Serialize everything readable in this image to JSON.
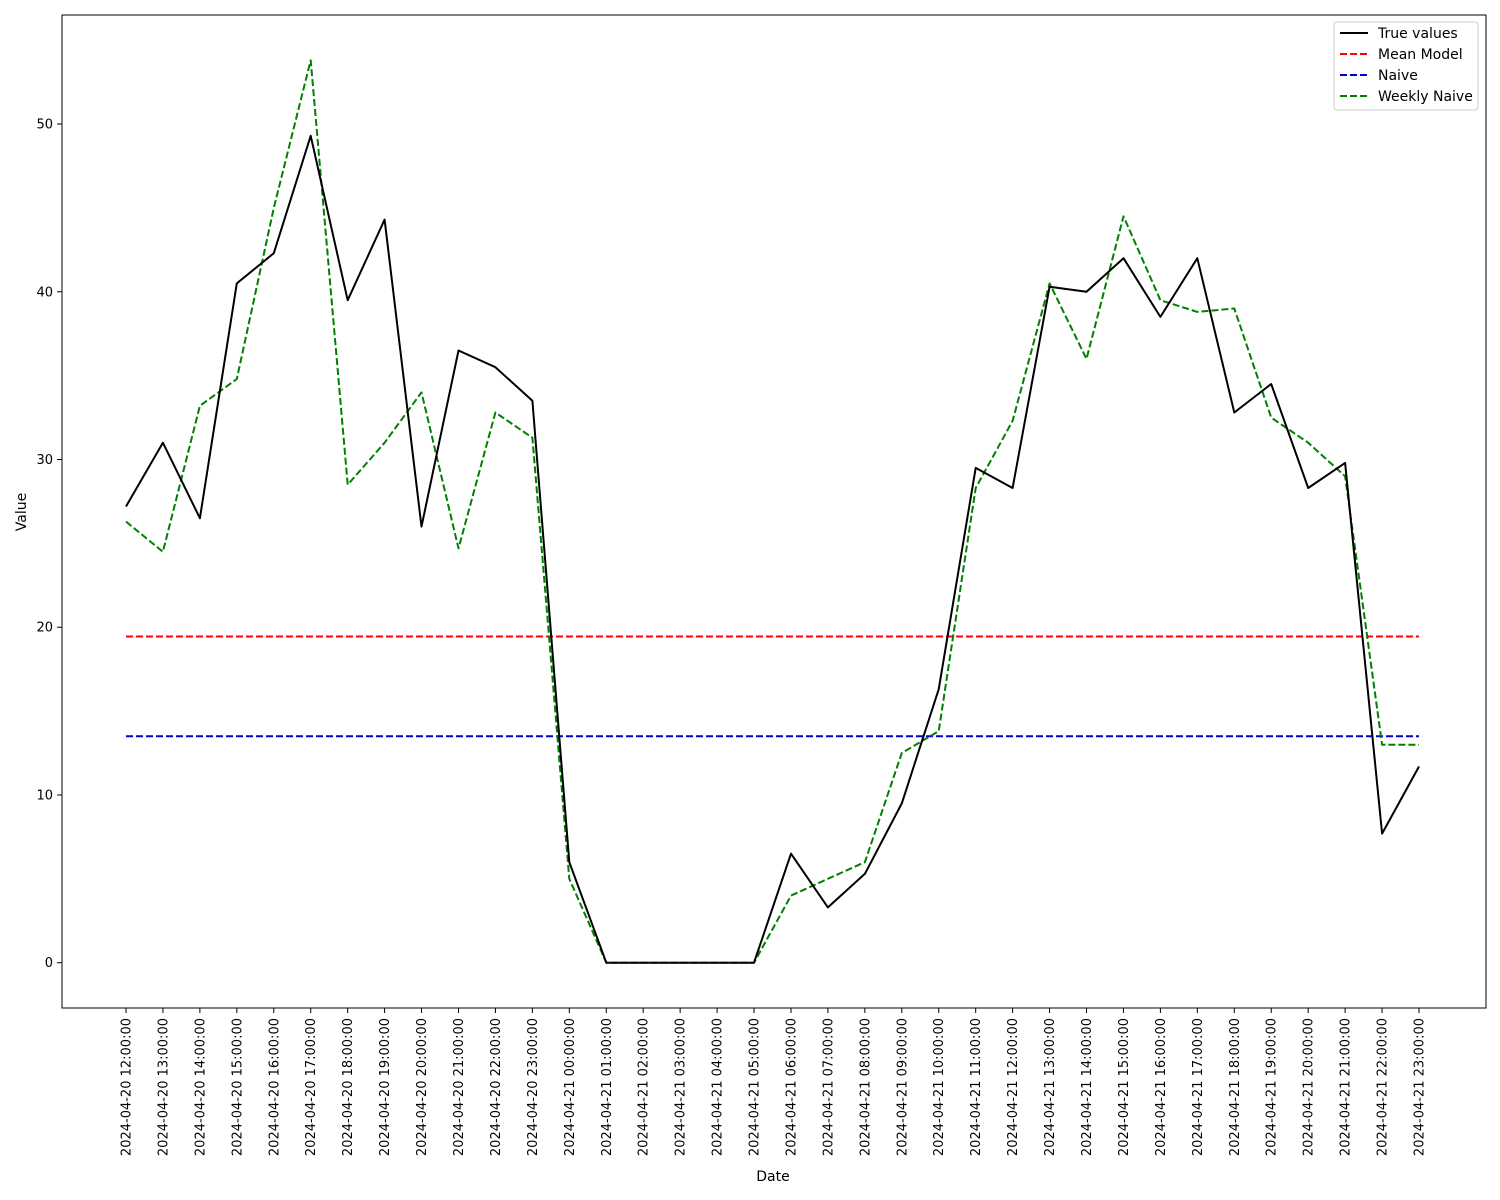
{
  "chart_data": {
    "type": "line",
    "xlabel": "Date",
    "ylabel": "Value",
    "ylim": [
      -2.7,
      56.5
    ],
    "yticks": [
      0,
      10,
      20,
      30,
      40,
      50
    ],
    "grid": false,
    "legend_position": "top-right",
    "x": [
      "2024-04-20 12:00:00",
      "2024-04-20 13:00:00",
      "2024-04-20 14:00:00",
      "2024-04-20 15:00:00",
      "2024-04-20 16:00:00",
      "2024-04-20 17:00:00",
      "2024-04-20 18:00:00",
      "2024-04-20 19:00:00",
      "2024-04-20 20:00:00",
      "2024-04-20 21:00:00",
      "2024-04-20 22:00:00",
      "2024-04-20 23:00:00",
      "2024-04-21 00:00:00",
      "2024-04-21 01:00:00",
      "2024-04-21 02:00:00",
      "2024-04-21 03:00:00",
      "2024-04-21 04:00:00",
      "2024-04-21 05:00:00",
      "2024-04-21 06:00:00",
      "2024-04-21 07:00:00",
      "2024-04-21 08:00:00",
      "2024-04-21 09:00:00",
      "2024-04-21 10:00:00",
      "2024-04-21 11:00:00",
      "2024-04-21 12:00:00",
      "2024-04-21 13:00:00",
      "2024-04-21 14:00:00",
      "2024-04-21 15:00:00",
      "2024-04-21 16:00:00",
      "2024-04-21 17:00:00",
      "2024-04-21 18:00:00",
      "2024-04-21 19:00:00",
      "2024-04-21 20:00:00",
      "2024-04-21 21:00:00",
      "2024-04-21 22:00:00",
      "2024-04-21 23:00:00"
    ],
    "series": [
      {
        "name": "True values",
        "color": "#000000",
        "dash": "solid",
        "values": [
          27.2,
          31.0,
          26.5,
          40.5,
          42.3,
          49.3,
          39.5,
          44.3,
          26.0,
          36.5,
          35.5,
          33.5,
          6.0,
          0.0,
          0.0,
          0.0,
          0.0,
          0.0,
          6.5,
          3.3,
          5.3,
          9.5,
          16.3,
          29.5,
          28.3,
          40.3,
          40.0,
          42.0,
          38.5,
          42.0,
          32.8,
          34.5,
          28.3,
          29.8,
          7.7,
          11.7
        ]
      },
      {
        "name": "Mean Model",
        "color": "#ff0000",
        "dash": "dashed",
        "values": [
          19.45,
          19.45,
          19.45,
          19.45,
          19.45,
          19.45,
          19.45,
          19.45,
          19.45,
          19.45,
          19.45,
          19.45,
          19.45,
          19.45,
          19.45,
          19.45,
          19.45,
          19.45,
          19.45,
          19.45,
          19.45,
          19.45,
          19.45,
          19.45,
          19.45,
          19.45,
          19.45,
          19.45,
          19.45,
          19.45,
          19.45,
          19.45,
          19.45,
          19.45,
          19.45,
          19.45
        ]
      },
      {
        "name": "Naive",
        "color": "#0000cc",
        "dash": "dashed",
        "values": [
          13.5,
          13.5,
          13.5,
          13.5,
          13.5,
          13.5,
          13.5,
          13.5,
          13.5,
          13.5,
          13.5,
          13.5,
          13.5,
          13.5,
          13.5,
          13.5,
          13.5,
          13.5,
          13.5,
          13.5,
          13.5,
          13.5,
          13.5,
          13.5,
          13.5,
          13.5,
          13.5,
          13.5,
          13.5,
          13.5,
          13.5,
          13.5,
          13.5,
          13.5,
          13.5,
          13.5
        ]
      },
      {
        "name": "Weekly Naive",
        "color": "#008000",
        "dash": "dashed",
        "values": [
          26.3,
          24.5,
          33.2,
          34.8,
          45.0,
          53.8,
          28.5,
          31.0,
          34.0,
          24.7,
          32.8,
          31.3,
          5.0,
          0.0,
          0.0,
          0.0,
          0.0,
          0.0,
          4.0,
          5.0,
          6.0,
          12.5,
          13.8,
          28.3,
          32.3,
          40.5,
          36.0,
          44.5,
          39.5,
          38.8,
          39.0,
          32.5,
          31.0,
          29.0,
          13.0,
          13.0
        ]
      }
    ]
  }
}
